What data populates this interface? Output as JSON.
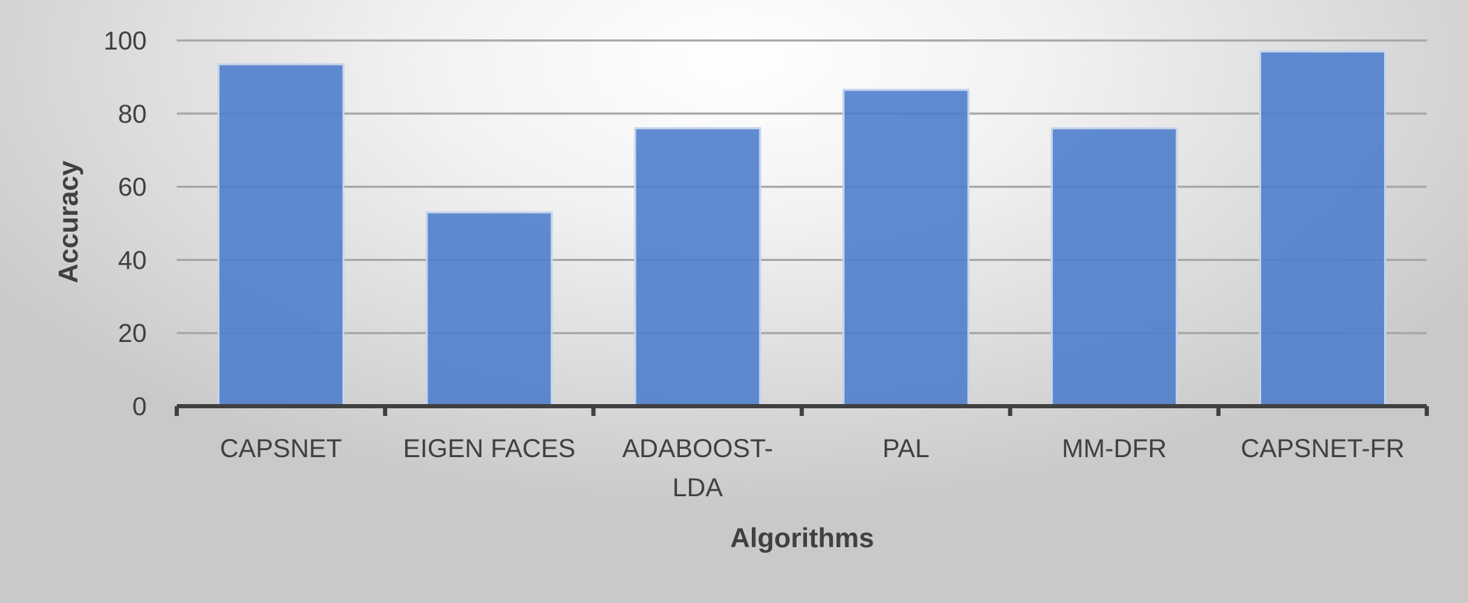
{
  "chart_data": {
    "type": "bar",
    "title": "",
    "xlabel": "Algorithms",
    "ylabel": "Accuracy",
    "categories": [
      "CAPSNET",
      "EIGEN FACES",
      "ADABOOST-LDA",
      "PAL",
      "MM-DFR",
      "CAPSNET-FR"
    ],
    "category_label_lines": [
      [
        "CAPSNET"
      ],
      [
        "EIGEN FACES"
      ],
      [
        "ADABOOST-",
        "LDA"
      ],
      [
        "PAL"
      ],
      [
        "MM-DFR"
      ],
      [
        "CAPSNET-FR"
      ]
    ],
    "series": [
      {
        "values": [
          93.5,
          53,
          76,
          86.5,
          76,
          97
        ]
      }
    ],
    "ylim": [
      0,
      100
    ],
    "yticks": [
      0,
      20,
      40,
      60,
      80,
      100
    ],
    "grid": true,
    "legend": "none",
    "colors": {
      "bar_fill": "#4f7ecb",
      "bar_stroke": "#c5d5ee",
      "gridline": "#a6a6a6",
      "axis": "#404040",
      "text": "#404040"
    }
  }
}
